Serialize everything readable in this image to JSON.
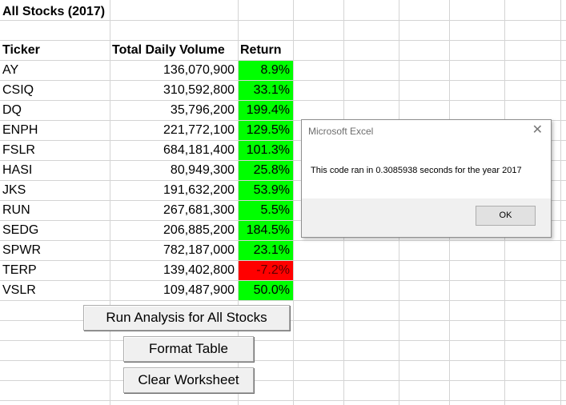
{
  "sheet": {
    "title": "All Stocks (2017)",
    "headers": {
      "ticker": "Ticker",
      "volume": "Total Daily Volume",
      "return": "Return"
    },
    "rows": [
      {
        "ticker": "AY",
        "volume": "136,070,900",
        "return": "8.9%",
        "status": "positive"
      },
      {
        "ticker": "CSIQ",
        "volume": "310,592,800",
        "return": "33.1%",
        "status": "positive"
      },
      {
        "ticker": "DQ",
        "volume": "35,796,200",
        "return": "199.4%",
        "status": "positive"
      },
      {
        "ticker": "ENPH",
        "volume": "221,772,100",
        "return": "129.5%",
        "status": "positive"
      },
      {
        "ticker": "FSLR",
        "volume": "684,181,400",
        "return": "101.3%",
        "status": "positive"
      },
      {
        "ticker": "HASI",
        "volume": "80,949,300",
        "return": "25.8%",
        "status": "positive"
      },
      {
        "ticker": "JKS",
        "volume": "191,632,200",
        "return": "53.9%",
        "status": "positive"
      },
      {
        "ticker": "RUN",
        "volume": "267,681,300",
        "return": "5.5%",
        "status": "positive"
      },
      {
        "ticker": "SEDG",
        "volume": "206,885,200",
        "return": "184.5%",
        "status": "positive"
      },
      {
        "ticker": "SPWR",
        "volume": "782,187,000",
        "return": "23.1%",
        "status": "positive"
      },
      {
        "ticker": "TERP",
        "volume": "139,402,800",
        "return": "-7.2%",
        "status": "negative"
      },
      {
        "ticker": "VSLR",
        "volume": "109,487,900",
        "return": "50.0%",
        "status": "positive"
      }
    ]
  },
  "buttons": {
    "run_analysis": "Run Analysis for All Stocks",
    "format_table": "Format Table",
    "clear_worksheet": "Clear Worksheet"
  },
  "dialog": {
    "title": "Microsoft Excel",
    "message": "This code ran in 0.3085938 seconds for the year 2017",
    "ok_label": "OK",
    "close_glyph": "✕"
  },
  "colors": {
    "positive": "#00ff00",
    "negative": "#ff0000",
    "gridline": "#d4d4d4"
  }
}
